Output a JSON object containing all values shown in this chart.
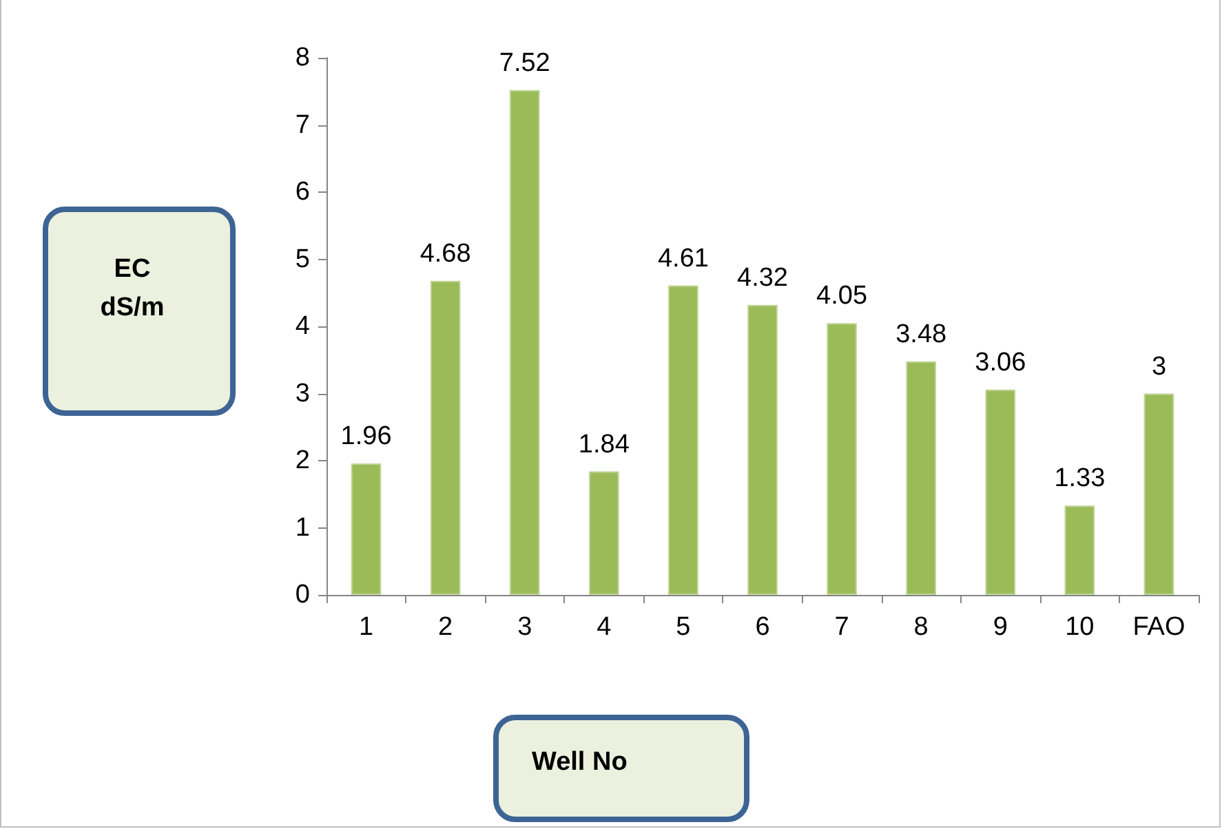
{
  "chart_data": {
    "type": "bar",
    "xlabel": "Well No",
    "annotations": [
      "EC dS/m"
    ],
    "categories": [
      "1",
      "2",
      "3",
      "4",
      "5",
      "6",
      "7",
      "8",
      "9",
      "10",
      "FAO"
    ],
    "values": [
      1.96,
      4.68,
      7.52,
      1.84,
      4.61,
      4.32,
      4.05,
      3.48,
      3.06,
      1.33,
      3
    ],
    "color": "#9bbb59",
    "ylim": [
      0,
      8
    ],
    "yticks": [
      0,
      1,
      2,
      3,
      4,
      5,
      6,
      7,
      8
    ],
    "grid": false,
    "data_labels": true
  }
}
